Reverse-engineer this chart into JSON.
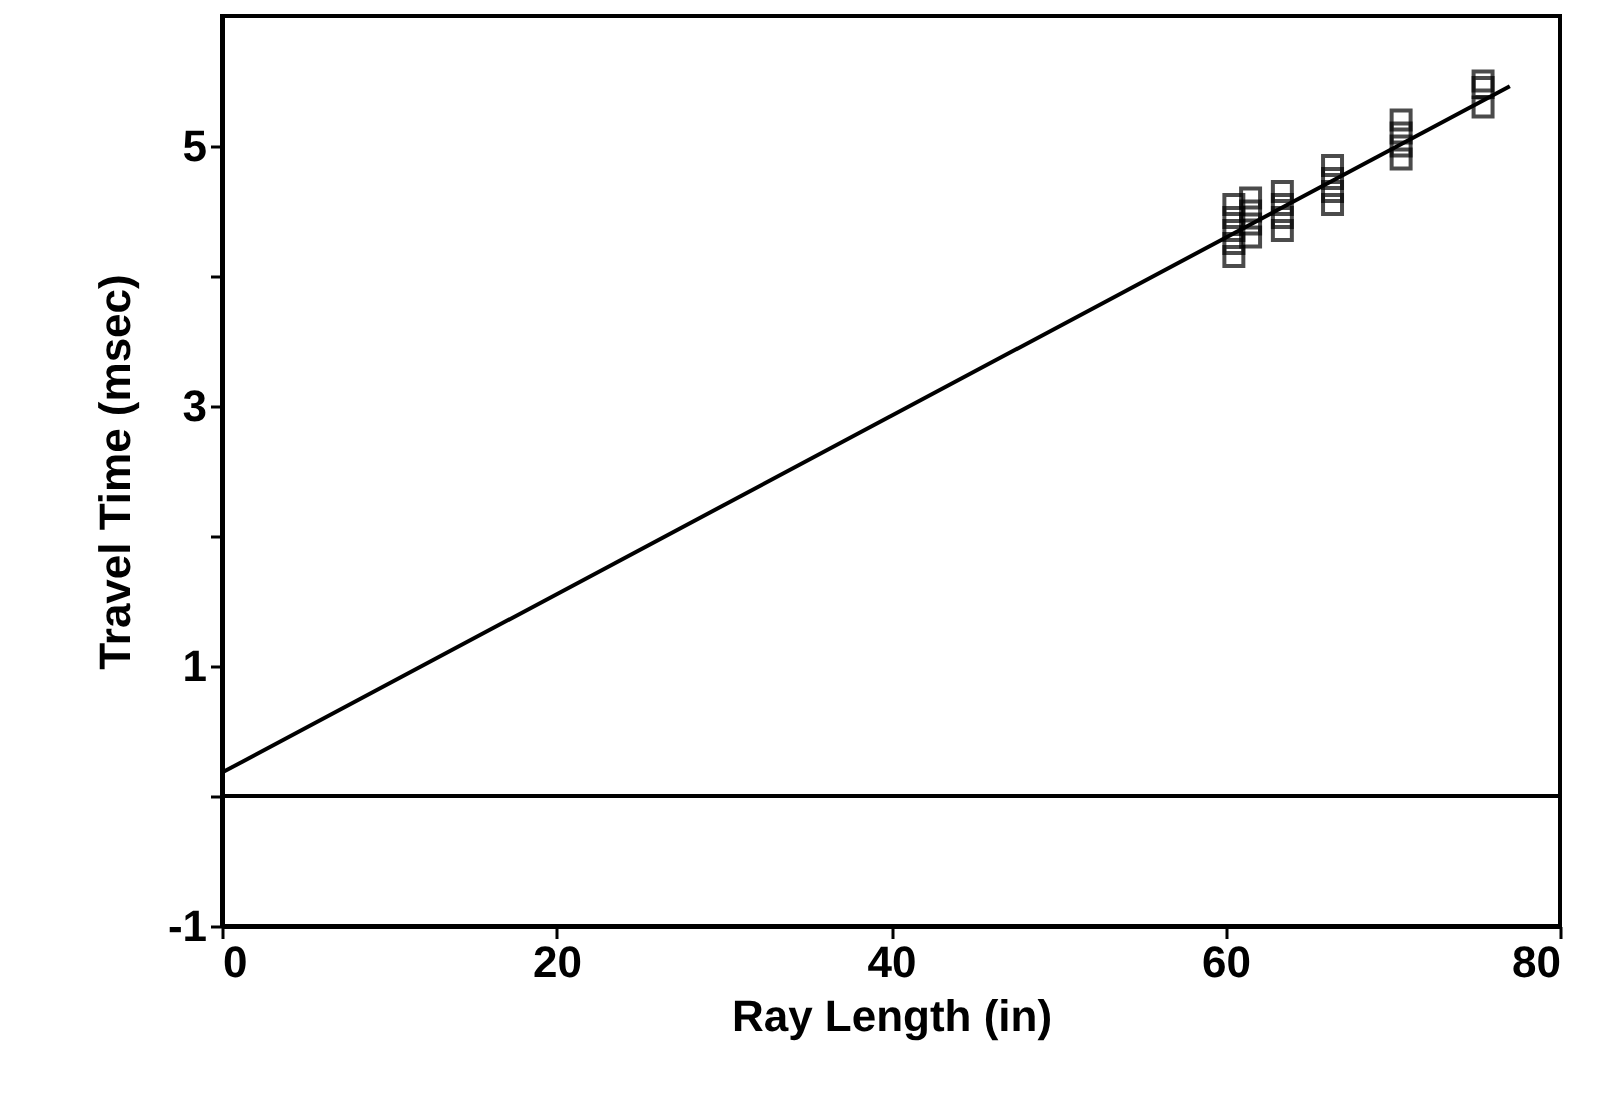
{
  "chart_data": {
    "type": "scatter",
    "xlabel": "Ray Length (in)",
    "ylabel": "Travel Time (msec)",
    "xlim": [
      0,
      80
    ],
    "ylim": [
      -1,
      6
    ],
    "xticks": [
      0,
      20,
      40,
      60,
      80
    ],
    "yticks": [
      -1,
      {
        "value": 0,
        "label": null
      },
      1,
      {
        "value": 2,
        "label": null
      },
      3,
      {
        "value": 4,
        "label": null
      },
      5
    ],
    "grid": false,
    "marker": "square",
    "series": [
      {
        "color": "#000000",
        "x": [
          60.5,
          60.5,
          60.5,
          60.5,
          60.5,
          61.5,
          61.5,
          61.5,
          61.5,
          63.4,
          63.4,
          63.4,
          63.4,
          66.4,
          66.4,
          66.4,
          66.4,
          70.5,
          70.5,
          70.5,
          70.5,
          75.4,
          75.4,
          75.4
        ],
        "values": [
          4.15,
          4.25,
          4.35,
          4.45,
          4.55,
          4.3,
          4.4,
          4.5,
          4.6,
          4.35,
          4.45,
          4.55,
          4.65,
          4.55,
          4.65,
          4.75,
          4.85,
          4.9,
          5.0,
          5.1,
          5.2,
          5.3,
          5.45,
          5.5
        ]
      },
      {
        "type": "line",
        "marker": "none",
        "color": "#000000",
        "x": [
          0,
          77
        ],
        "values": [
          0.18,
          5.46
        ]
      }
    ],
    "ref_lines": [
      {
        "axis": "y",
        "value": 0,
        "color": "#000000"
      }
    ]
  }
}
